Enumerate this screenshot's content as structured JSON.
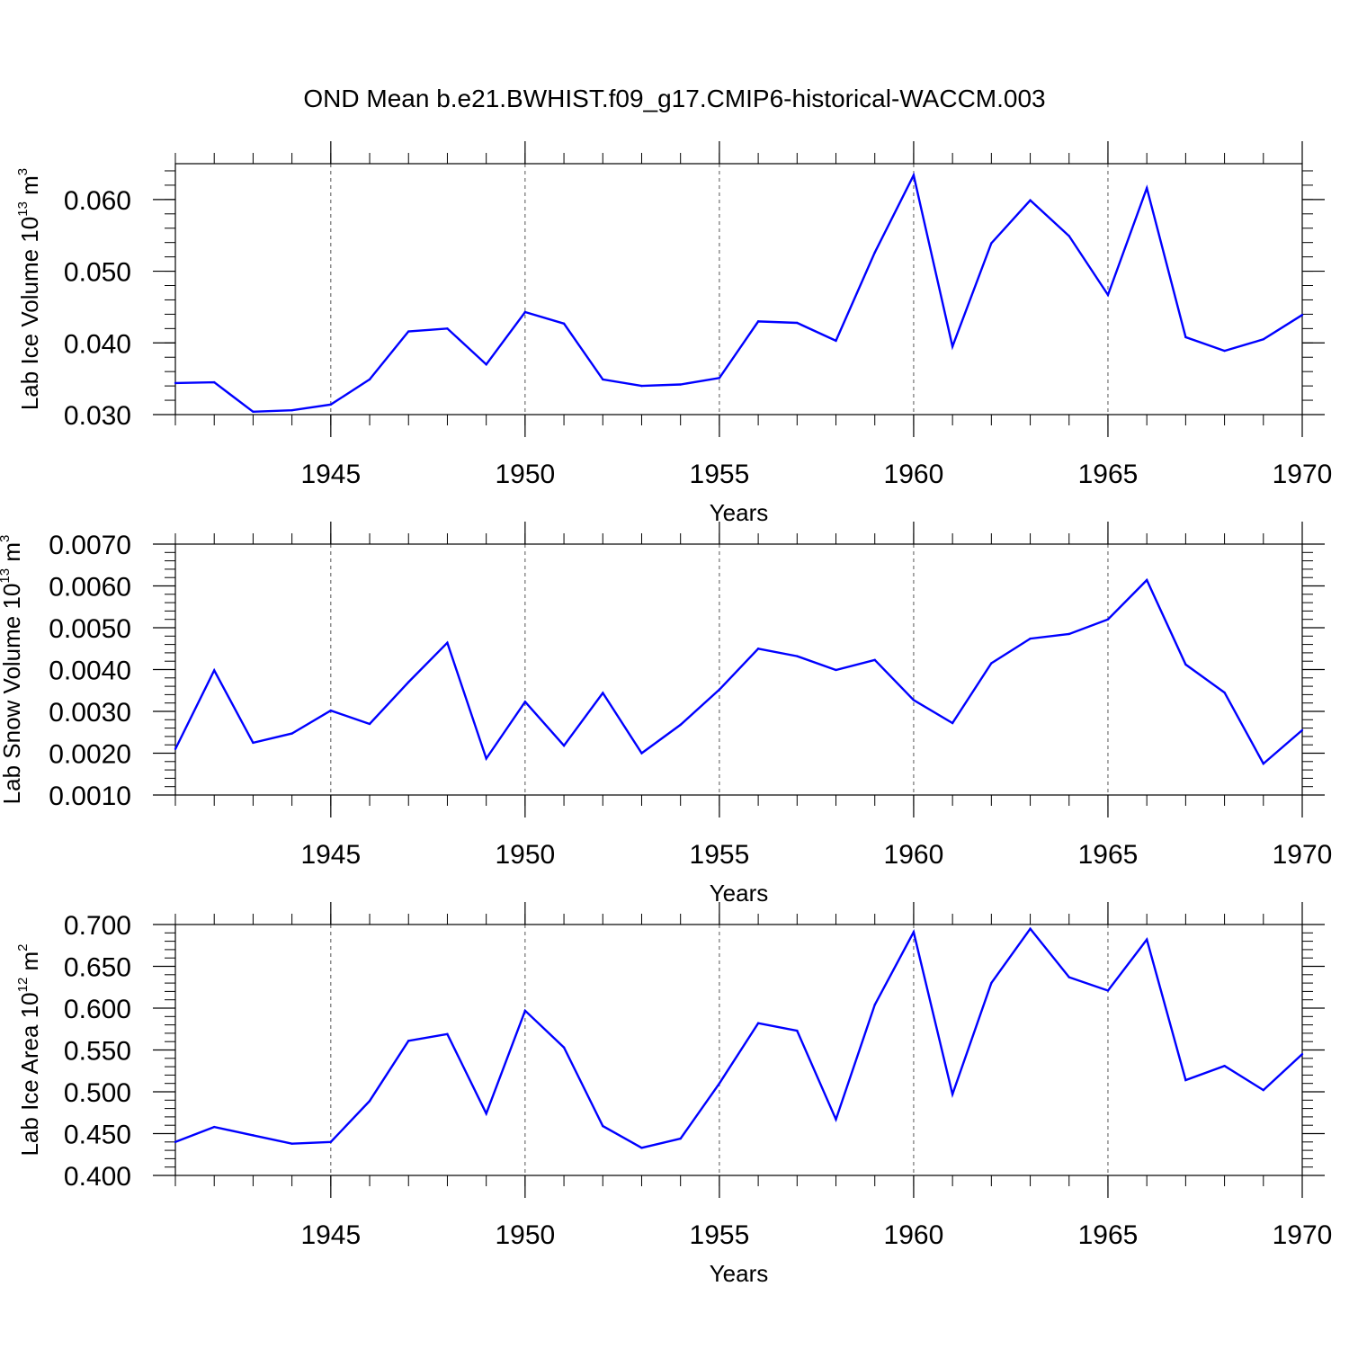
{
  "figure_title": "OND Mean b.e21.BWHIST.f09_g17.CMIP6-historical-WACCM.003",
  "colors": {
    "line": "#0000ff",
    "axes": "#000000",
    "grid": "#555555"
  },
  "chart_data": [
    {
      "type": "line",
      "title": "OND Mean b.e21.BWHIST.f09_g17.CMIP6-historical-WACCM.003",
      "xlabel": "Years",
      "ylabel": {
        "text": "Lab Ice Volume 10",
        "exp": "13",
        "unit": " m",
        "unit_exp": "3"
      },
      "xlim": [
        1941,
        1970
      ],
      "ylim": [
        0.03,
        0.065
      ],
      "x_ticks": [
        "1945",
        "1950",
        "1955",
        "1960",
        "1965",
        "1970"
      ],
      "y_ticks": [
        "0.030",
        "0.040",
        "0.050",
        "0.060"
      ],
      "y_tick_values": [
        0.03,
        0.04,
        0.05,
        0.06
      ],
      "grid_x": true,
      "x": [
        1941,
        1942,
        1943,
        1944,
        1945,
        1946,
        1947,
        1948,
        1949,
        1950,
        1951,
        1952,
        1953,
        1954,
        1955,
        1956,
        1957,
        1958,
        1959,
        1960,
        1961,
        1962,
        1963,
        1964,
        1965,
        1966,
        1967,
        1968,
        1969,
        1970
      ],
      "values": [
        0.0344,
        0.0345,
        0.0304,
        0.0306,
        0.0314,
        0.0349,
        0.0416,
        0.042,
        0.037,
        0.0443,
        0.0427,
        0.0349,
        0.034,
        0.0342,
        0.0351,
        0.043,
        0.0428,
        0.0403,
        0.0526,
        0.0634,
        0.0395,
        0.0539,
        0.0599,
        0.0549,
        0.0467,
        0.0616,
        0.0408,
        0.0389,
        0.0405,
        0.0439
      ]
    },
    {
      "type": "line",
      "xlabel": "Years",
      "ylabel": {
        "text": "Lab Snow Volume 10",
        "exp": "13",
        "unit": " m",
        "unit_exp": "3"
      },
      "xlim": [
        1941,
        1970
      ],
      "ylim": [
        0.001,
        0.007
      ],
      "x_ticks": [
        "1945",
        "1950",
        "1955",
        "1960",
        "1965",
        "1970"
      ],
      "y_ticks": [
        "0.0010",
        "0.0020",
        "0.0030",
        "0.0040",
        "0.0050",
        "0.0060",
        "0.0070"
      ],
      "y_tick_values": [
        0.001,
        0.002,
        0.003,
        0.004,
        0.005,
        0.006,
        0.007
      ],
      "grid_x": true,
      "x": [
        1941,
        1942,
        1943,
        1944,
        1945,
        1946,
        1947,
        1948,
        1949,
        1950,
        1951,
        1952,
        1953,
        1954,
        1955,
        1956,
        1957,
        1958,
        1959,
        1960,
        1961,
        1962,
        1963,
        1964,
        1965,
        1966,
        1967,
        1968,
        1969,
        1970
      ],
      "values": [
        0.0021,
        0.00398,
        0.00225,
        0.00247,
        0.00302,
        0.0027,
        0.0037,
        0.00464,
        0.00187,
        0.00323,
        0.00218,
        0.00344,
        0.002,
        0.00268,
        0.00352,
        0.0045,
        0.00432,
        0.00399,
        0.00423,
        0.00327,
        0.00272,
        0.00415,
        0.00474,
        0.00485,
        0.0052,
        0.00614,
        0.00412,
        0.00345,
        0.00175,
        0.00255
      ]
    },
    {
      "type": "line",
      "xlabel": "Years",
      "ylabel": {
        "text": "Lab Ice Area 10",
        "exp": "12",
        "unit": " m",
        "unit_exp": "2"
      },
      "xlim": [
        1941,
        1970
      ],
      "ylim": [
        0.4,
        0.7
      ],
      "x_ticks": [
        "1945",
        "1950",
        "1955",
        "1960",
        "1965",
        "1970"
      ],
      "y_ticks": [
        "0.400",
        "0.450",
        "0.500",
        "0.550",
        "0.600",
        "0.650",
        "0.700"
      ],
      "y_tick_values": [
        0.4,
        0.45,
        0.5,
        0.55,
        0.6,
        0.65,
        0.7
      ],
      "grid_x": true,
      "x": [
        1941,
        1942,
        1943,
        1944,
        1945,
        1946,
        1947,
        1948,
        1949,
        1950,
        1951,
        1952,
        1953,
        1954,
        1955,
        1956,
        1957,
        1958,
        1959,
        1960,
        1961,
        1962,
        1963,
        1964,
        1965,
        1966,
        1967,
        1968,
        1969,
        1970
      ],
      "values": [
        0.44,
        0.458,
        0.448,
        0.438,
        0.44,
        0.489,
        0.561,
        0.569,
        0.474,
        0.597,
        0.553,
        0.459,
        0.433,
        0.444,
        0.51,
        0.582,
        0.573,
        0.467,
        0.604,
        0.691,
        0.497,
        0.63,
        0.695,
        0.637,
        0.621,
        0.682,
        0.514,
        0.531,
        0.502,
        0.545
      ]
    }
  ]
}
